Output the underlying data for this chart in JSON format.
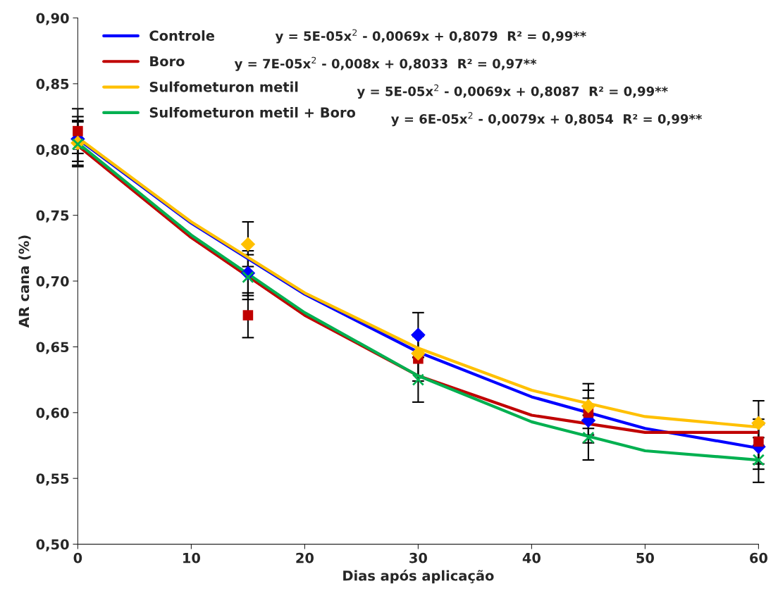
{
  "chart_data": {
    "type": "scatter",
    "xlabel": "Dias após aplicação",
    "ylabel": "AR cana (%)",
    "xlim": [
      0,
      60
    ],
    "xticks": [
      0,
      10,
      20,
      30,
      40,
      50,
      60
    ],
    "ylim": [
      0.5,
      0.9
    ],
    "yticks": [
      {
        "value": 0.5,
        "label": "0,50"
      },
      {
        "value": 0.55,
        "label": "0,55"
      },
      {
        "value": 0.6,
        "label": "0,60"
      },
      {
        "value": 0.65,
        "label": "0,65"
      },
      {
        "value": 0.7,
        "label": "0,70"
      },
      {
        "value": 0.75,
        "label": "0,75"
      },
      {
        "value": 0.8,
        "label": "0,80"
      },
      {
        "value": 0.85,
        "label": "0,85"
      },
      {
        "value": 0.9,
        "label": "0,90"
      }
    ],
    "grid": false,
    "legend": "top left",
    "annotations": [
      "y = 5E-05x$^{2}$ - 0,0069x + 0,8079  R² = 0,99**",
      "y = 7E-05x$^{2}$ - 0,008x + 0,8033  R² = 0,97**",
      "y = 5E-05x$^{2}$ - 0,0069x + 0,8087  R² = 0,99**",
      "y = 6E-05x$^{2}$ - 0,0079x + 0,8054  R² = 0,99**"
    ],
    "series": [
      {
        "color": "#0000ff",
        "marker": "diamond",
        "x": [
          0,
          15,
          30,
          45,
          60
        ],
        "values": [
          0.808,
          0.706,
          0.659,
          0.594,
          0.574
        ],
        "errors": [
          0.017,
          0.017,
          0.017,
          0.017,
          0.017
        ]
      },
      {
        "color": "#c00000",
        "marker": "square",
        "x": [
          0,
          15,
          30,
          45,
          60
        ],
        "values": [
          0.814,
          0.674,
          0.641,
          0.6,
          0.578
        ],
        "errors": [
          0.017,
          0.017,
          0.017,
          0.017,
          0.017
        ]
      },
      {
        "color": "#ffc000",
        "marker": "diamond",
        "x": [
          0,
          15,
          30,
          45,
          60
        ],
        "values": [
          0.805,
          0.728,
          0.645,
          0.605,
          0.592
        ],
        "errors": [
          0.017,
          0.017,
          null,
          0.017,
          0.017
        ]
      },
      {
        "color": "#00b050",
        "marker": "cross",
        "x": [
          0,
          15,
          30,
          45,
          60
        ],
        "values": [
          0.804,
          0.703,
          0.625,
          0.581,
          0.564
        ],
        "errors": [
          0.017,
          0.017,
          0.017,
          0.017,
          0.017
        ]
      },
      {
        "type": "line",
        "name": "Controle",
        "color": "#0000ff",
        "x": [
          0,
          10,
          20,
          30,
          40,
          50,
          60
        ],
        "values": [
          0.808,
          0.744,
          0.69,
          0.646,
          0.612,
          0.588,
          0.573
        ]
      },
      {
        "type": "line",
        "name": "Boro",
        "color": "#c00000",
        "x": [
          0,
          10,
          20,
          30,
          40,
          50,
          60
        ],
        "values": [
          0.803,
          0.733,
          0.674,
          0.628,
          0.598,
          0.585,
          0.585
        ]
      },
      {
        "type": "line",
        "name": "Sulfometuron metil",
        "color": "#ffc000",
        "x": [
          0,
          10,
          20,
          30,
          40,
          50,
          60
        ],
        "values": [
          0.809,
          0.745,
          0.691,
          0.649,
          0.617,
          0.597,
          0.589
        ]
      },
      {
        "type": "line",
        "name": "Sulfometuron metil + Boro",
        "color": "#00b050",
        "x": [
          0,
          10,
          20,
          30,
          40,
          50,
          60
        ],
        "values": [
          0.805,
          0.735,
          0.676,
          0.628,
          0.593,
          0.571,
          0.564
        ]
      }
    ]
  }
}
